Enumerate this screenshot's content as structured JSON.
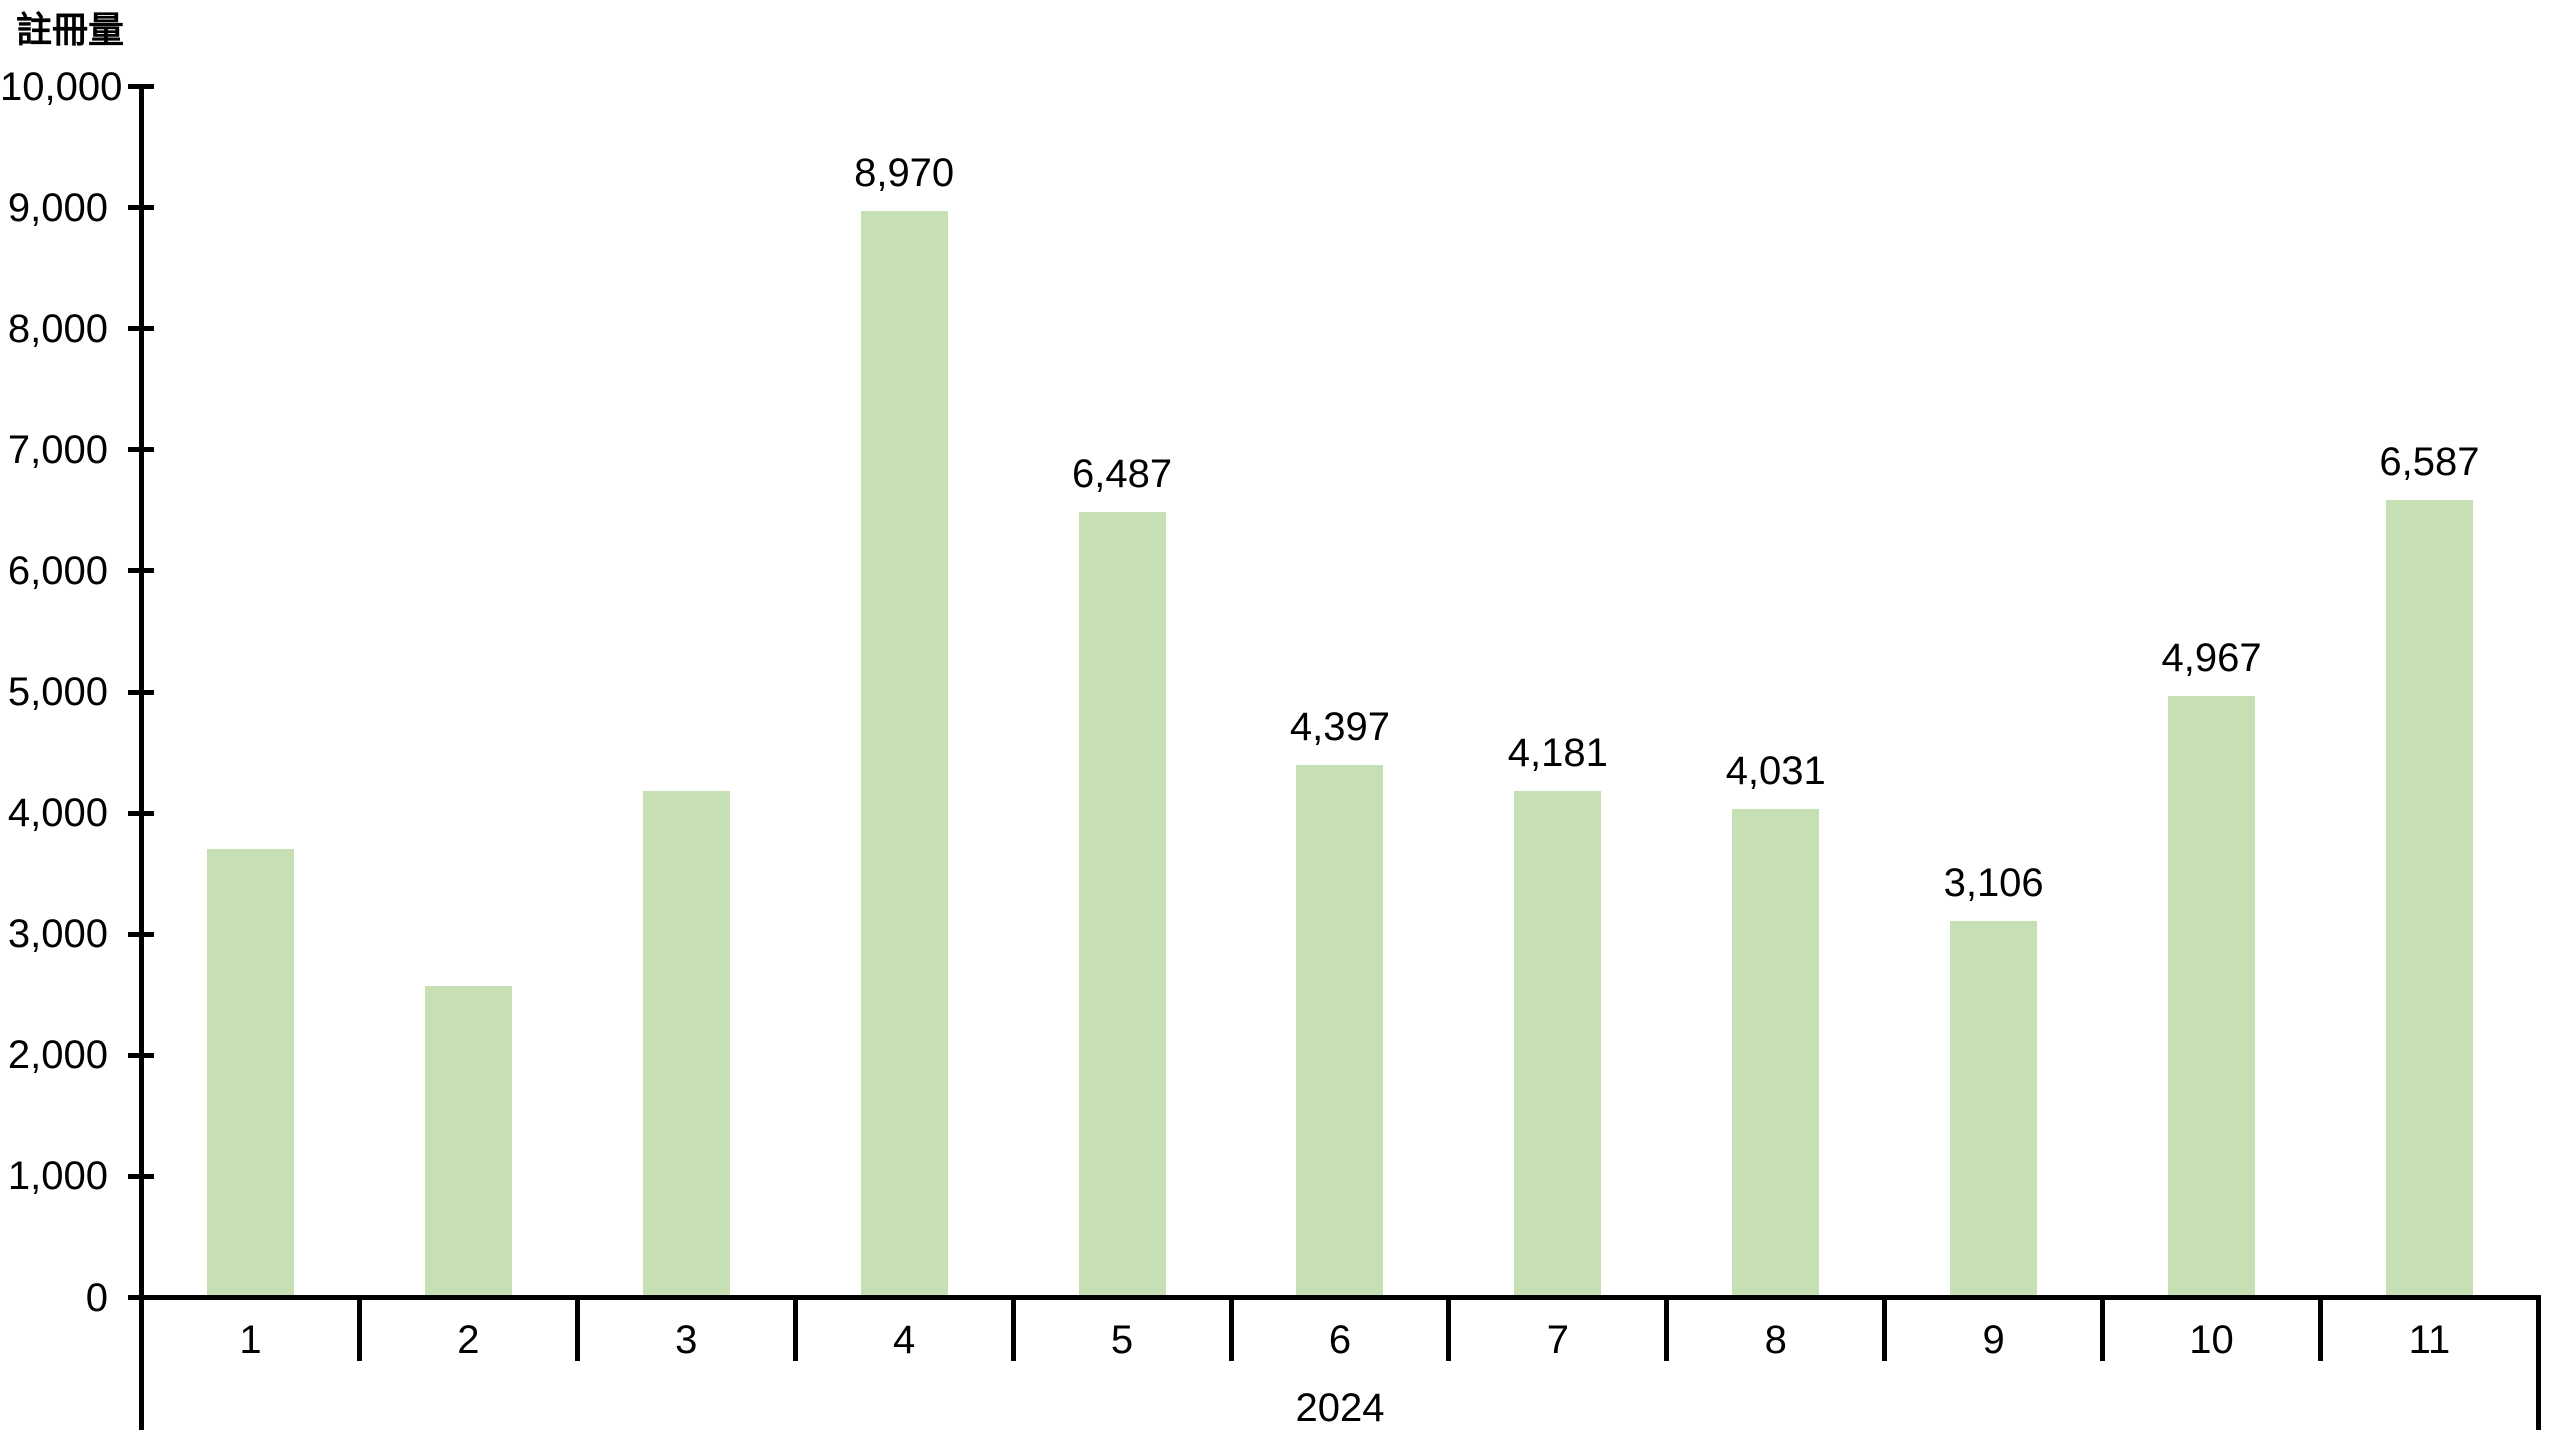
{
  "chart_data": {
    "type": "bar",
    "title": "註冊量",
    "ylabel": "註冊量",
    "x_group_label": "2024",
    "categories": [
      "1",
      "2",
      "3",
      "4",
      "5",
      "6",
      "7",
      "8",
      "9",
      "10",
      "11"
    ],
    "values": [
      3700,
      2570,
      4180,
      8970,
      6487,
      4397,
      4181,
      4031,
      3106,
      4967,
      6587
    ],
    "data_labels": [
      null,
      null,
      null,
      "8,970",
      "6,487",
      "4,397",
      "4,181",
      "4,031",
      "3,106",
      "4,967",
      "6,587"
    ],
    "ylim": [
      0,
      10000
    ],
    "y_tick_step": 1000,
    "y_tick_labels": [
      "0",
      "1,000",
      "2,000",
      "3,000",
      "4,000",
      "5,000",
      "6,000",
      "7,000",
      "8,000",
      "9,000",
      "10,000"
    ],
    "grid": false,
    "legend": false,
    "bar_color": "#c6e0b4",
    "axis_color": "#000000",
    "text_color": "#000000"
  }
}
